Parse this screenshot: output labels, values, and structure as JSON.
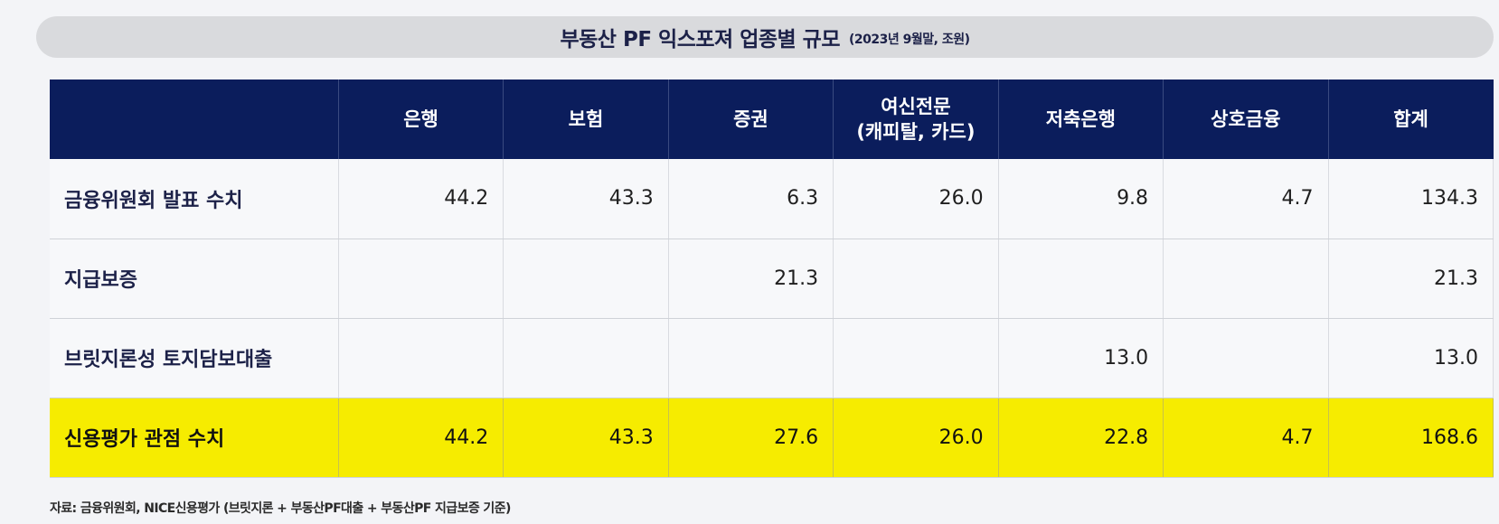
{
  "title": {
    "main": "부동산 PF 익스포져 업종별 규모",
    "sub": "(2023년 9월말, 조원)"
  },
  "table": {
    "headers": [
      "",
      "은행",
      "보험",
      "증권",
      "여신전문\n(캐피탈, 카드)",
      "저축은행",
      "상호금융",
      "합계"
    ],
    "rows": [
      {
        "label": "금융위원회 발표 수치",
        "values": [
          "44.2",
          "43.3",
          "6.3",
          "26.0",
          "9.8",
          "4.7",
          "134.3"
        ]
      },
      {
        "label": "지급보증",
        "values": [
          "",
          "",
          "21.3",
          "",
          "",
          "",
          "21.3"
        ]
      },
      {
        "label": "브릿지론성 토지담보대출",
        "values": [
          "",
          "",
          "",
          "",
          "13.0",
          "",
          "13.0"
        ]
      },
      {
        "label": "신용평가 관점 수치",
        "values": [
          "44.2",
          "43.3",
          "27.6",
          "26.0",
          "22.8",
          "4.7",
          "168.6"
        ]
      }
    ]
  },
  "source": "자료: 금융위원회, NICE신용평가 (브릿지론 + 부동산PF대출 + 부동산PF 지급보증 기준)",
  "colors": {
    "header_bg": "#0b1d5c",
    "highlight_bg": "#f6ec00",
    "title_bar_bg": "#d9dadd"
  }
}
